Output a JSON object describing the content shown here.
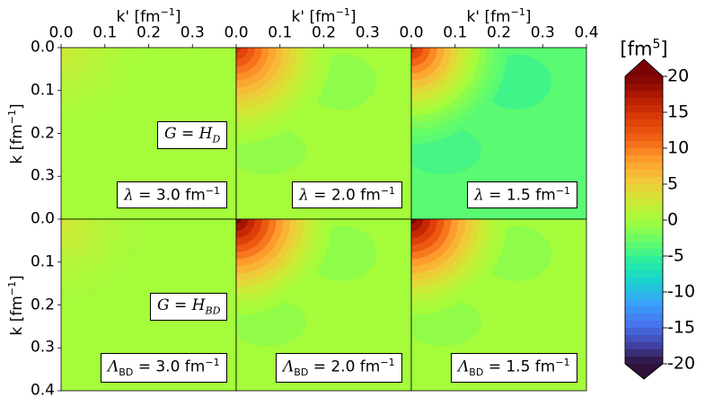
{
  "chart_data": {
    "type": "heatmap",
    "grid": {
      "rows": 2,
      "cols": 3
    },
    "x_axis": {
      "label": "k' [fm⁻¹]",
      "range": [
        0.0,
        0.4
      ],
      "ticks": [
        "0.0",
        "0.1",
        "0.2",
        "0.3",
        "0.0",
        "0.1",
        "0.2",
        "0.3",
        "0.0",
        "0.1",
        "0.2",
        "0.3",
        "0.4"
      ],
      "position": "top"
    },
    "y_axis": {
      "label": "k [fm⁻¹]",
      "range": [
        0.0,
        0.4
      ],
      "inverted": true,
      "ticks_top_row": [
        "0.0",
        "0.1",
        "0.2",
        "0.3"
      ],
      "ticks_bottom_row": [
        "0.0",
        "0.1",
        "0.2",
        "0.3",
        "0.4"
      ]
    },
    "colorbar": {
      "title": "[fm⁵]",
      "range": [
        -20,
        20
      ],
      "ticks": [
        "20",
        "15",
        "10",
        "5",
        "0",
        "-5",
        "-10",
        "-15",
        "-20"
      ],
      "colormap": "turbo",
      "extend": "both"
    },
    "row_labels": [
      {
        "main": "G",
        "sub": "D"
      },
      {
        "main": "G",
        "sub": "BD"
      }
    ],
    "panels": [
      {
        "row": 0,
        "col": 0,
        "param": {
          "sym": "λ",
          "sub": "",
          "value": "3.0",
          "unit": "fm⁻¹"
        },
        "peak_value": 2.5,
        "background_value": 0.0,
        "lobe_value": 0.0
      },
      {
        "row": 0,
        "col": 1,
        "param": {
          "sym": "λ",
          "sub": "",
          "value": "2.0",
          "unit": "fm⁻¹"
        },
        "peak_value": 15,
        "background_value": 0.0,
        "lobe_value": -1.5
      },
      {
        "row": 0,
        "col": 2,
        "param": {
          "sym": "λ",
          "sub": "",
          "value": "1.5",
          "unit": "fm⁻¹"
        },
        "peak_value": 15,
        "background_value": -3.5,
        "lobe_value": -5
      },
      {
        "row": 1,
        "col": 0,
        "param": {
          "sym": "Λ",
          "sub": "BD",
          "value": "3.0",
          "unit": "fm⁻¹"
        },
        "peak_value": 3,
        "background_value": 0.0,
        "lobe_value": 0.0
      },
      {
        "row": 1,
        "col": 1,
        "param": {
          "sym": "Λ",
          "sub": "BD",
          "value": "2.0",
          "unit": "fm⁻¹"
        },
        "peak_value": 20,
        "background_value": 0.0,
        "lobe_value": -1.5
      },
      {
        "row": 1,
        "col": 2,
        "param": {
          "sym": "Λ",
          "sub": "BD",
          "value": "1.5",
          "unit": "fm⁻¹"
        },
        "peak_value": 20,
        "background_value": 0.0,
        "lobe_value": -1.5
      }
    ]
  }
}
